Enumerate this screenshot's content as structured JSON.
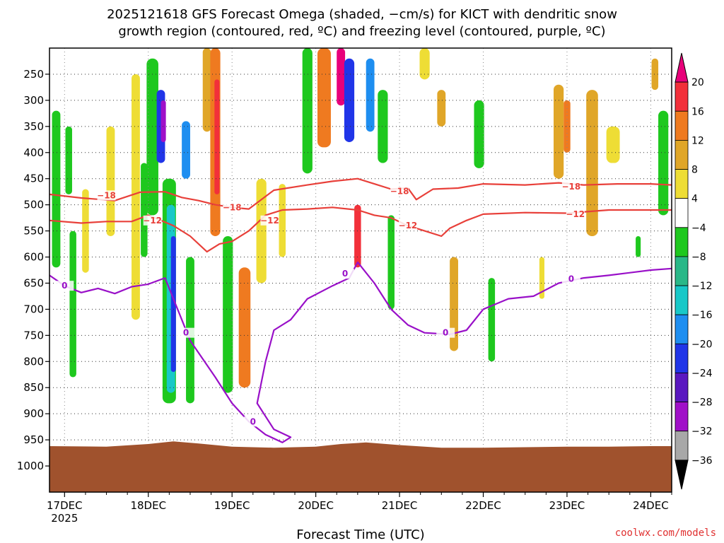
{
  "title_line1": "2025121618 GFS Forecast Omega (shaded, −cm/s) for KICT with dendritic snow",
  "title_line2": "growth region (contoured, red, ºC) and freezing level (contoured, purple, ºC)",
  "xlabel": "Forecast Time (UTC)",
  "credit": "coolwx.com/models",
  "chart_data": {
    "type": "heatmap",
    "x_axis": {
      "range_days": [
        "2025-12-16 18Z",
        "2025-12-24 06Z"
      ],
      "ticks": [
        {
          "day": 17,
          "label": "17DEC",
          "sublabel": "2025"
        },
        {
          "day": 18,
          "label": "18DEC"
        },
        {
          "day": 19,
          "label": "19DEC"
        },
        {
          "day": 20,
          "label": "20DEC"
        },
        {
          "day": 21,
          "label": "21DEC"
        },
        {
          "day": 22,
          "label": "22DEC"
        },
        {
          "day": 23,
          "label": "23DEC"
        },
        {
          "day": 24,
          "label": "24DEC"
        }
      ],
      "start_day": 16.82,
      "end_day": 24.25,
      "grid": true
    },
    "y_axis": {
      "label": "",
      "scale": "pressure_hPa",
      "range": [
        200,
        1050
      ],
      "ticks": [
        250,
        300,
        350,
        400,
        450,
        500,
        550,
        600,
        650,
        700,
        750,
        800,
        850,
        900,
        950,
        1000
      ],
      "grid": true
    },
    "colorbar": {
      "label_values": [
        20,
        16,
        12,
        8,
        4,
        -4,
        -8,
        -12,
        -16,
        -20,
        -24,
        -28,
        -32,
        -36
      ],
      "bins": [
        {
          "range": [
            20,
            99
          ],
          "color": "#e8007a",
          "shape": "arrow-up"
        },
        {
          "range": [
            16,
            20
          ],
          "color": "#f2303a"
        },
        {
          "range": [
            12,
            16
          ],
          "color": "#ef7a20"
        },
        {
          "range": [
            8,
            12
          ],
          "color": "#e0a628"
        },
        {
          "range": [
            4,
            8
          ],
          "color": "#eedd35"
        },
        {
          "range": [
            -4,
            4
          ],
          "color": "#ffffff"
        },
        {
          "range": [
            -8,
            -4
          ],
          "color": "#1ec81e"
        },
        {
          "range": [
            -12,
            -8
          ],
          "color": "#2ab888"
        },
        {
          "range": [
            -16,
            -12
          ],
          "color": "#18c8c8"
        },
        {
          "range": [
            -20,
            -16
          ],
          "color": "#1e8ef0"
        },
        {
          "range": [
            -24,
            -20
          ],
          "color": "#2035e8"
        },
        {
          "range": [
            -28,
            -24
          ],
          "color": "#5a18c0"
        },
        {
          "range": [
            -32,
            -28
          ],
          "color": "#a010c8"
        },
        {
          "range": [
            -36,
            -32
          ],
          "color": "#a8a8a8"
        },
        {
          "range": [
            -99,
            -36
          ],
          "color": "#000000",
          "shape": "arrow-down"
        }
      ]
    },
    "terrain": {
      "color": "#a0522d",
      "surface_pressure": [
        [
          16.82,
          962
        ],
        [
          17.5,
          963
        ],
        [
          18.0,
          958
        ],
        [
          18.3,
          953
        ],
        [
          18.6,
          957
        ],
        [
          19.0,
          963
        ],
        [
          19.5,
          965
        ],
        [
          20.0,
          963
        ],
        [
          20.3,
          958
        ],
        [
          20.6,
          955
        ],
        [
          21.0,
          960
        ],
        [
          21.5,
          965
        ],
        [
          22.0,
          965
        ],
        [
          22.5,
          964
        ],
        [
          23.0,
          963
        ],
        [
          23.5,
          963
        ],
        [
          24.0,
          962
        ],
        [
          24.25,
          962
        ]
      ]
    },
    "shaded_features": [
      {
        "day": 16.9,
        "p": [
          320,
          620
        ],
        "hw": 0.05,
        "color": "#1ec81e"
      },
      {
        "day": 17.05,
        "p": [
          350,
          480
        ],
        "hw": 0.04,
        "color": "#1ec81e"
      },
      {
        "day": 17.1,
        "p": [
          550,
          830
        ],
        "hw": 0.04,
        "color": "#1ec81e"
      },
      {
        "day": 17.25,
        "p": [
          470,
          630
        ],
        "hw": 0.04,
        "color": "#eedd35"
      },
      {
        "day": 17.55,
        "p": [
          350,
          560
        ],
        "hw": 0.05,
        "color": "#eedd35"
      },
      {
        "day": 17.85,
        "p": [
          250,
          720
        ],
        "hw": 0.05,
        "color": "#eedd35"
      },
      {
        "day": 17.95,
        "p": [
          420,
          600
        ],
        "hw": 0.04,
        "color": "#1ec81e"
      },
      {
        "day": 18.05,
        "p": [
          220,
          520
        ],
        "hw": 0.07,
        "color": "#1ec81e"
      },
      {
        "day": 18.15,
        "p": [
          280,
          420
        ],
        "hw": 0.05,
        "color": "#2035e8"
      },
      {
        "day": 18.18,
        "p": [
          300,
          380
        ],
        "hw": 0.03,
        "color": "#a010c8"
      },
      {
        "day": 18.25,
        "p": [
          450,
          880
        ],
        "hw": 0.08,
        "color": "#1ec81e"
      },
      {
        "day": 18.27,
        "p": [
          500,
          860
        ],
        "hw": 0.05,
        "color": "#18c8c8"
      },
      {
        "day": 18.3,
        "p": [
          560,
          820
        ],
        "hw": 0.03,
        "color": "#2035e8"
      },
      {
        "day": 18.45,
        "p": [
          340,
          450
        ],
        "hw": 0.05,
        "color": "#1e8ef0"
      },
      {
        "day": 18.5,
        "p": [
          600,
          880
        ],
        "hw": 0.05,
        "color": "#1ec81e"
      },
      {
        "day": 18.7,
        "p": [
          200,
          360
        ],
        "hw": 0.05,
        "color": "#e0a628"
      },
      {
        "day": 18.8,
        "p": [
          200,
          560
        ],
        "hw": 0.06,
        "color": "#ef7a20"
      },
      {
        "day": 18.82,
        "p": [
          260,
          480
        ],
        "hw": 0.03,
        "color": "#f2303a"
      },
      {
        "day": 18.95,
        "p": [
          560,
          860
        ],
        "hw": 0.06,
        "color": "#1ec81e"
      },
      {
        "day": 19.15,
        "p": [
          620,
          850
        ],
        "hw": 0.07,
        "color": "#ef7a20"
      },
      {
        "day": 19.35,
        "p": [
          450,
          650
        ],
        "hw": 0.06,
        "color": "#eedd35"
      },
      {
        "day": 19.6,
        "p": [
          460,
          600
        ],
        "hw": 0.04,
        "color": "#eedd35"
      },
      {
        "day": 19.9,
        "p": [
          200,
          440
        ],
        "hw": 0.06,
        "color": "#1ec81e"
      },
      {
        "day": 20.1,
        "p": [
          200,
          390
        ],
        "hw": 0.08,
        "color": "#ef7a20"
      },
      {
        "day": 20.3,
        "p": [
          200,
          310
        ],
        "hw": 0.05,
        "color": "#e8007a"
      },
      {
        "day": 20.4,
        "p": [
          220,
          380
        ],
        "hw": 0.06,
        "color": "#2035e8"
      },
      {
        "day": 20.5,
        "p": [
          500,
          620
        ],
        "hw": 0.04,
        "color": "#f2303a"
      },
      {
        "day": 20.65,
        "p": [
          220,
          360
        ],
        "hw": 0.05,
        "color": "#1e8ef0"
      },
      {
        "day": 20.8,
        "p": [
          280,
          420
        ],
        "hw": 0.06,
        "color": "#1ec81e"
      },
      {
        "day": 20.9,
        "p": [
          520,
          700
        ],
        "hw": 0.04,
        "color": "#1ec81e"
      },
      {
        "day": 21.3,
        "p": [
          200,
          260
        ],
        "hw": 0.06,
        "color": "#eedd35"
      },
      {
        "day": 21.5,
        "p": [
          280,
          350
        ],
        "hw": 0.05,
        "color": "#e0a628"
      },
      {
        "day": 21.65,
        "p": [
          600,
          780
        ],
        "hw": 0.05,
        "color": "#e0a628"
      },
      {
        "day": 21.95,
        "p": [
          300,
          430
        ],
        "hw": 0.06,
        "color": "#1ec81e"
      },
      {
        "day": 22.1,
        "p": [
          640,
          800
        ],
        "hw": 0.04,
        "color": "#1ec81e"
      },
      {
        "day": 22.7,
        "p": [
          600,
          680
        ],
        "hw": 0.03,
        "color": "#eedd35"
      },
      {
        "day": 22.9,
        "p": [
          270,
          450
        ],
        "hw": 0.06,
        "color": "#e0a628"
      },
      {
        "day": 23.0,
        "p": [
          300,
          400
        ],
        "hw": 0.04,
        "color": "#ef7a20"
      },
      {
        "day": 23.3,
        "p": [
          280,
          560
        ],
        "hw": 0.07,
        "color": "#e0a628"
      },
      {
        "day": 23.55,
        "p": [
          350,
          420
        ],
        "hw": 0.08,
        "color": "#eedd35"
      },
      {
        "day": 23.85,
        "p": [
          560,
          600
        ],
        "hw": 0.03,
        "color": "#1ec81e"
      },
      {
        "day": 24.05,
        "p": [
          220,
          280
        ],
        "hw": 0.04,
        "color": "#e0a628"
      },
      {
        "day": 24.15,
        "p": [
          320,
          520
        ],
        "hw": 0.06,
        "color": "#1ec81e"
      }
    ],
    "contours": [
      {
        "level": -18,
        "color": "#e8403a",
        "points": [
          [
            16.82,
            480
          ],
          [
            17.2,
            487
          ],
          [
            17.6,
            492
          ],
          [
            17.9,
            476
          ],
          [
            18.2,
            475
          ],
          [
            18.4,
            486
          ],
          [
            18.6,
            492
          ],
          [
            18.8,
            500
          ],
          [
            19.0,
            505
          ],
          [
            19.2,
            508
          ],
          [
            19.5,
            472
          ],
          [
            19.9,
            462
          ],
          [
            20.2,
            455
          ],
          [
            20.5,
            450
          ],
          [
            20.7,
            460
          ],
          [
            20.9,
            470
          ],
          [
            21.1,
            468
          ],
          [
            21.2,
            490
          ],
          [
            21.4,
            470
          ],
          [
            21.7,
            468
          ],
          [
            22.0,
            460
          ],
          [
            22.5,
            462
          ],
          [
            22.9,
            458
          ],
          [
            23.2,
            462
          ],
          [
            23.6,
            460
          ],
          [
            24.0,
            460
          ],
          [
            24.25,
            462
          ]
        ],
        "labels": [
          {
            "day": 17.5,
            "p": 482,
            "text": "−18"
          },
          {
            "day": 19.0,
            "p": 505,
            "text": "−18"
          },
          {
            "day": 21.0,
            "p": 474,
            "text": "−18"
          },
          {
            "day": 23.05,
            "p": 465,
            "text": "−18"
          }
        ]
      },
      {
        "day_note": "",
        "level": -12,
        "color": "#e8403a",
        "points": [
          [
            16.82,
            530
          ],
          [
            17.2,
            535
          ],
          [
            17.5,
            532
          ],
          [
            17.8,
            532
          ],
          [
            18.0,
            520
          ],
          [
            18.3,
            540
          ],
          [
            18.5,
            560
          ],
          [
            18.7,
            590
          ],
          [
            18.85,
            575
          ],
          [
            19.0,
            570
          ],
          [
            19.2,
            550
          ],
          [
            19.4,
            520
          ],
          [
            19.6,
            510
          ],
          [
            19.9,
            508
          ],
          [
            20.2,
            505
          ],
          [
            20.5,
            510
          ],
          [
            20.7,
            520
          ],
          [
            20.9,
            525
          ],
          [
            21.1,
            540
          ],
          [
            21.3,
            550
          ],
          [
            21.5,
            560
          ],
          [
            21.6,
            545
          ],
          [
            21.8,
            530
          ],
          [
            22.0,
            518
          ],
          [
            22.5,
            515
          ],
          [
            23.0,
            516
          ],
          [
            23.5,
            510
          ],
          [
            24.0,
            510
          ],
          [
            24.25,
            510
          ]
        ],
        "labels": [
          {
            "day": 18.05,
            "p": 530,
            "text": "−12"
          },
          {
            "day": 19.45,
            "p": 530,
            "text": "−12"
          },
          {
            "day": 21.1,
            "p": 540,
            "text": "−12"
          },
          {
            "day": 23.1,
            "p": 518,
            "text": "−12"
          }
        ]
      },
      {
        "level": 0,
        "color": "#9910c8",
        "points": [
          [
            16.82,
            635
          ],
          [
            17.0,
            655
          ],
          [
            17.2,
            668
          ],
          [
            17.4,
            660
          ],
          [
            17.6,
            670
          ],
          [
            17.8,
            657
          ],
          [
            18.0,
            652
          ],
          [
            18.2,
            640
          ],
          [
            18.35,
            700
          ],
          [
            18.5,
            760
          ],
          [
            18.8,
            830
          ],
          [
            19.0,
            880
          ],
          [
            19.2,
            915
          ],
          [
            19.4,
            940
          ],
          [
            19.6,
            955
          ],
          [
            19.7,
            945
          ],
          [
            19.5,
            930
          ],
          [
            19.3,
            880
          ],
          [
            19.4,
            800
          ],
          [
            19.5,
            740
          ],
          [
            19.7,
            720
          ],
          [
            19.9,
            680
          ],
          [
            20.2,
            655
          ],
          [
            20.4,
            640
          ],
          [
            20.5,
            610
          ],
          [
            20.7,
            650
          ],
          [
            20.9,
            700
          ],
          [
            21.1,
            730
          ],
          [
            21.3,
            745
          ],
          [
            21.6,
            748
          ],
          [
            21.8,
            740
          ],
          [
            22.0,
            700
          ],
          [
            22.3,
            680
          ],
          [
            22.6,
            675
          ],
          [
            22.9,
            650
          ],
          [
            23.2,
            640
          ],
          [
            23.5,
            635
          ],
          [
            24.0,
            625
          ],
          [
            24.25,
            622
          ]
        ],
        "labels": [
          {
            "day": 17.0,
            "p": 655,
            "text": "0"
          },
          {
            "day": 18.45,
            "p": 745,
            "text": "0"
          },
          {
            "day": 19.25,
            "p": 915,
            "text": "0"
          },
          {
            "day": 20.35,
            "p": 632,
            "text": "0"
          },
          {
            "day": 21.55,
            "p": 745,
            "text": "0"
          },
          {
            "day": 23.05,
            "p": 642,
            "text": "0"
          }
        ]
      }
    ]
  }
}
